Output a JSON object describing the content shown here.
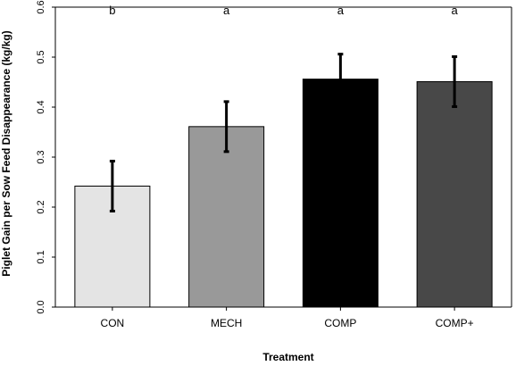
{
  "chart_data": {
    "type": "bar",
    "title": "",
    "xlabel": "Treatment",
    "ylabel": "Piglet Gain per Sow Feed Disappearance (kg/kg)",
    "categories": [
      "CON",
      "MECH",
      "COMP",
      "COMP+"
    ],
    "values": [
      0.242,
      0.361,
      0.456,
      0.451
    ],
    "error": [
      0.05,
      0.05,
      0.05,
      0.05
    ],
    "significance_letters": [
      "b",
      "a",
      "a",
      "a"
    ],
    "bar_colors": [
      "#e4e4e4",
      "#999999",
      "#000000",
      "#484848"
    ],
    "ylim": [
      0.0,
      0.6
    ],
    "yticks": [
      "0.0",
      "0.1",
      "0.2",
      "0.3",
      "0.4",
      "0.5",
      "0.6"
    ],
    "grid": false,
    "legend": false
  }
}
